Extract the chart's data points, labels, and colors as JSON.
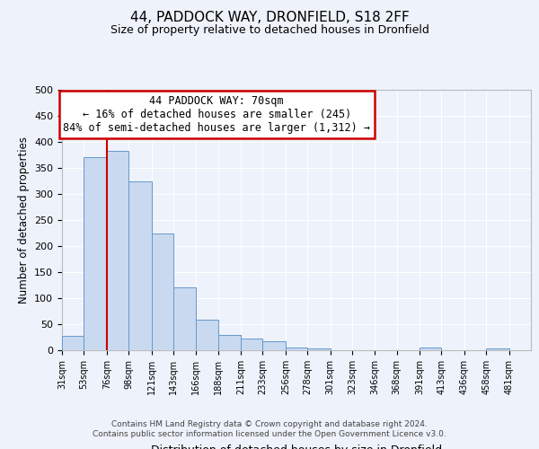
{
  "title": "44, PADDOCK WAY, DRONFIELD, S18 2FF",
  "subtitle": "Size of property relative to detached houses in Dronfield",
  "xlabel": "Distribution of detached houses by size in Dronfield",
  "ylabel": "Number of detached properties",
  "bar_labels": [
    "31sqm",
    "53sqm",
    "76sqm",
    "98sqm",
    "121sqm",
    "143sqm",
    "166sqm",
    "188sqm",
    "211sqm",
    "233sqm",
    "256sqm",
    "278sqm",
    "301sqm",
    "323sqm",
    "346sqm",
    "368sqm",
    "391sqm",
    "413sqm",
    "436sqm",
    "458sqm",
    "481sqm"
  ],
  "bar_values": [
    28,
    370,
    383,
    325,
    225,
    121,
    59,
    29,
    22,
    17,
    6,
    4,
    0,
    0,
    0,
    0,
    5,
    0,
    0,
    4,
    0
  ],
  "bar_color": "#c9d9f0",
  "bar_edge_color": "#6699cc",
  "ylim": [
    0,
    500
  ],
  "yticks": [
    0,
    50,
    100,
    150,
    200,
    250,
    300,
    350,
    400,
    450,
    500
  ],
  "vline_x": 76,
  "vline_color": "#cc0000",
  "annotation_title": "44 PADDOCK WAY: 70sqm",
  "annotation_line1": "← 16% of detached houses are smaller (245)",
  "annotation_line2": "84% of semi-detached houses are larger (1,312) →",
  "annotation_box_color": "#ffffff",
  "annotation_box_edge": "#cc0000",
  "footer1": "Contains HM Land Registry data © Crown copyright and database right 2024.",
  "footer2": "Contains public sector information licensed under the Open Government Licence v3.0.",
  "background_color": "#eef2fa",
  "grid_color": "#ffffff",
  "bin_edges": [
    31,
    53,
    76,
    98,
    121,
    143,
    166,
    188,
    211,
    233,
    256,
    278,
    301,
    323,
    346,
    368,
    391,
    413,
    436,
    458,
    481,
    503
  ]
}
